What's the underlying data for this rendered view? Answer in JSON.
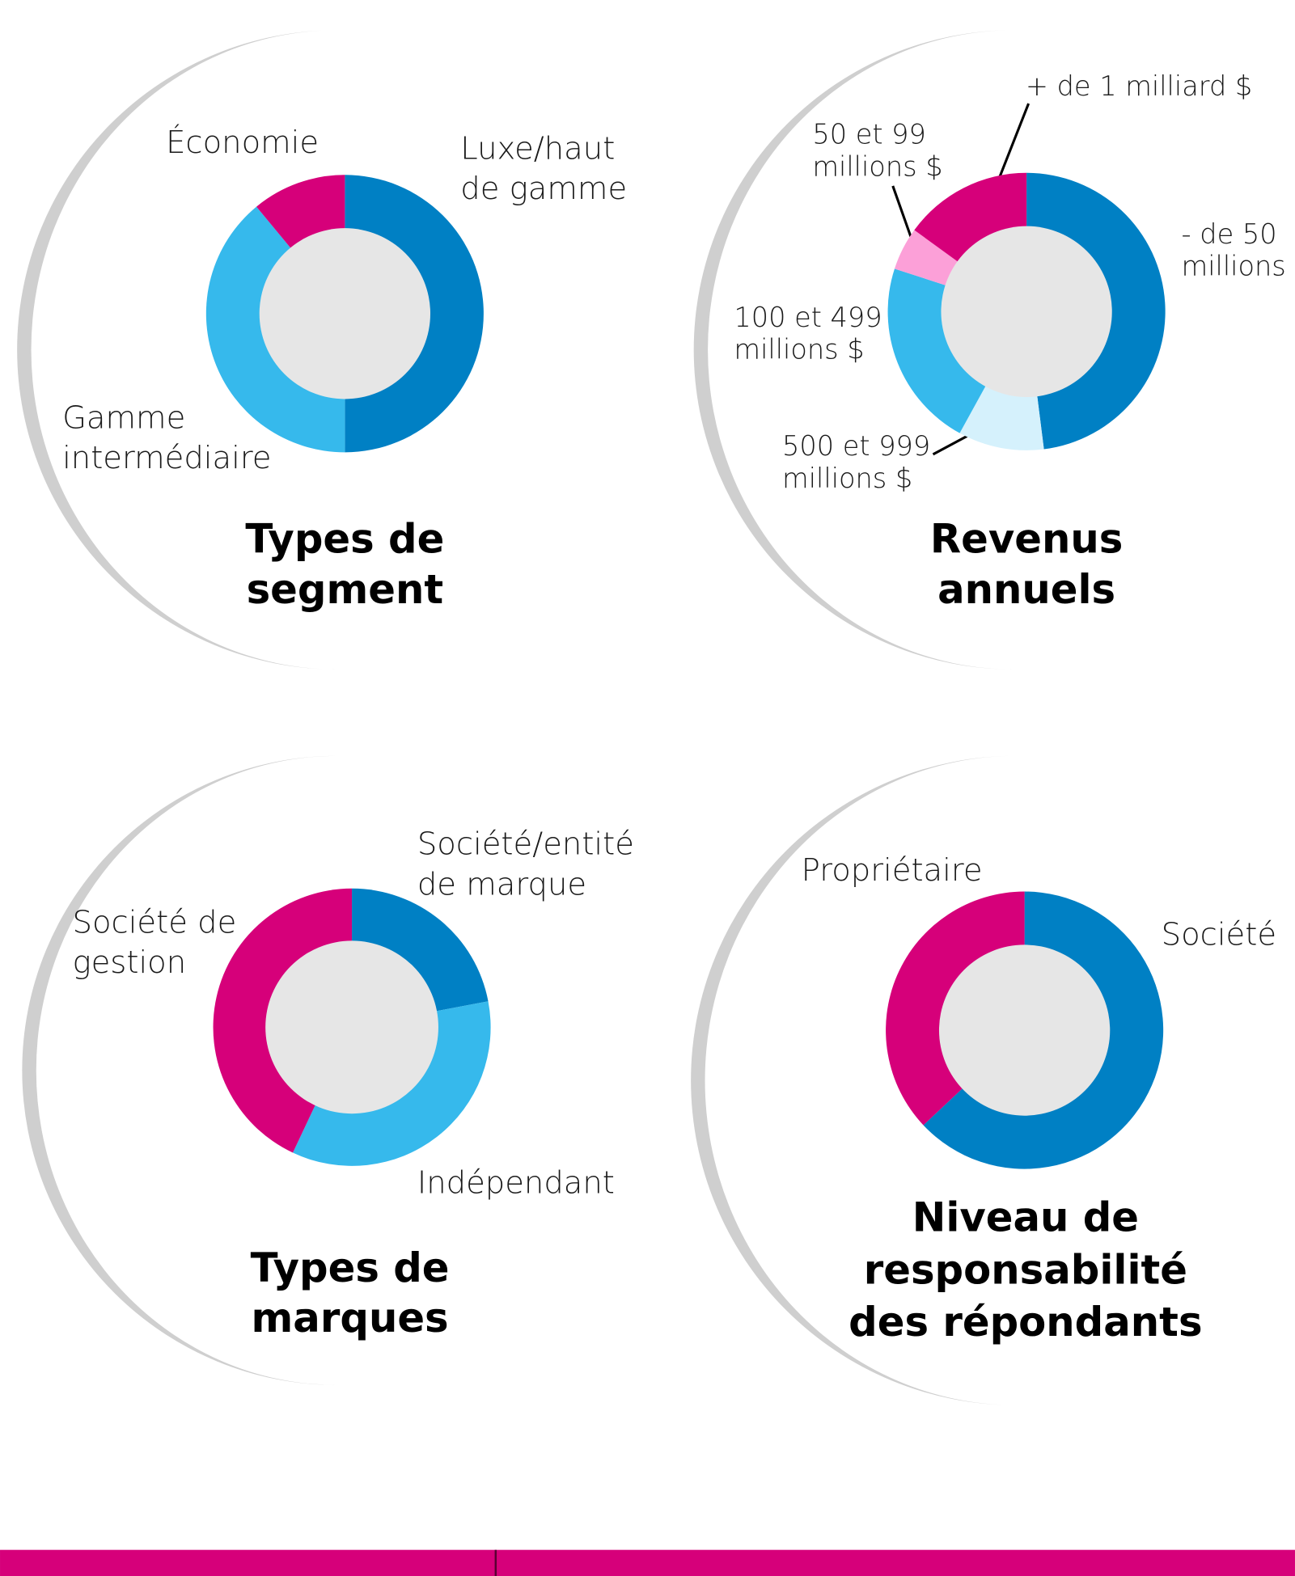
{
  "chart_data": [
    {
      "type": "donut",
      "title": "Types de\nsegment",
      "categories": [
        "Luxe/haut\nde gamme",
        "Gamme\nintermédiaire",
        "Économie"
      ],
      "values": [
        50,
        39,
        11
      ],
      "colors": [
        "#0080c4",
        "#36b9ec",
        "#d6007a"
      ]
    },
    {
      "type": "donut",
      "title": "Revenus\nannuels",
      "categories": [
        "- de 50\nmillions $",
        "500 et 999\nmillions $",
        "100 et 499\nmillions $",
        "50 et 99\nmillions $",
        "+ de 1 milliard $"
      ],
      "values": [
        48,
        10,
        22,
        5,
        15
      ],
      "colors": [
        "#0080c4",
        "#d5f1fc",
        "#36b9ec",
        "#fca0d8",
        "#d6007a"
      ]
    },
    {
      "type": "donut",
      "title": "Types de\nmarques",
      "categories": [
        "Société/entité\nde marque",
        "Indépendant",
        "Société de\ngestion"
      ],
      "values": [
        22,
        35,
        43
      ],
      "colors": [
        "#0080c4",
        "#36b9ec",
        "#d6007a"
      ]
    },
    {
      "type": "donut",
      "title": "Niveau de\nresponsabilité\ndes répondants",
      "categories": [
        "Société",
        "Propriétaire"
      ],
      "values": [
        63,
        37
      ],
      "colors": [
        "#0080c4",
        "#d6007a"
      ]
    }
  ]
}
